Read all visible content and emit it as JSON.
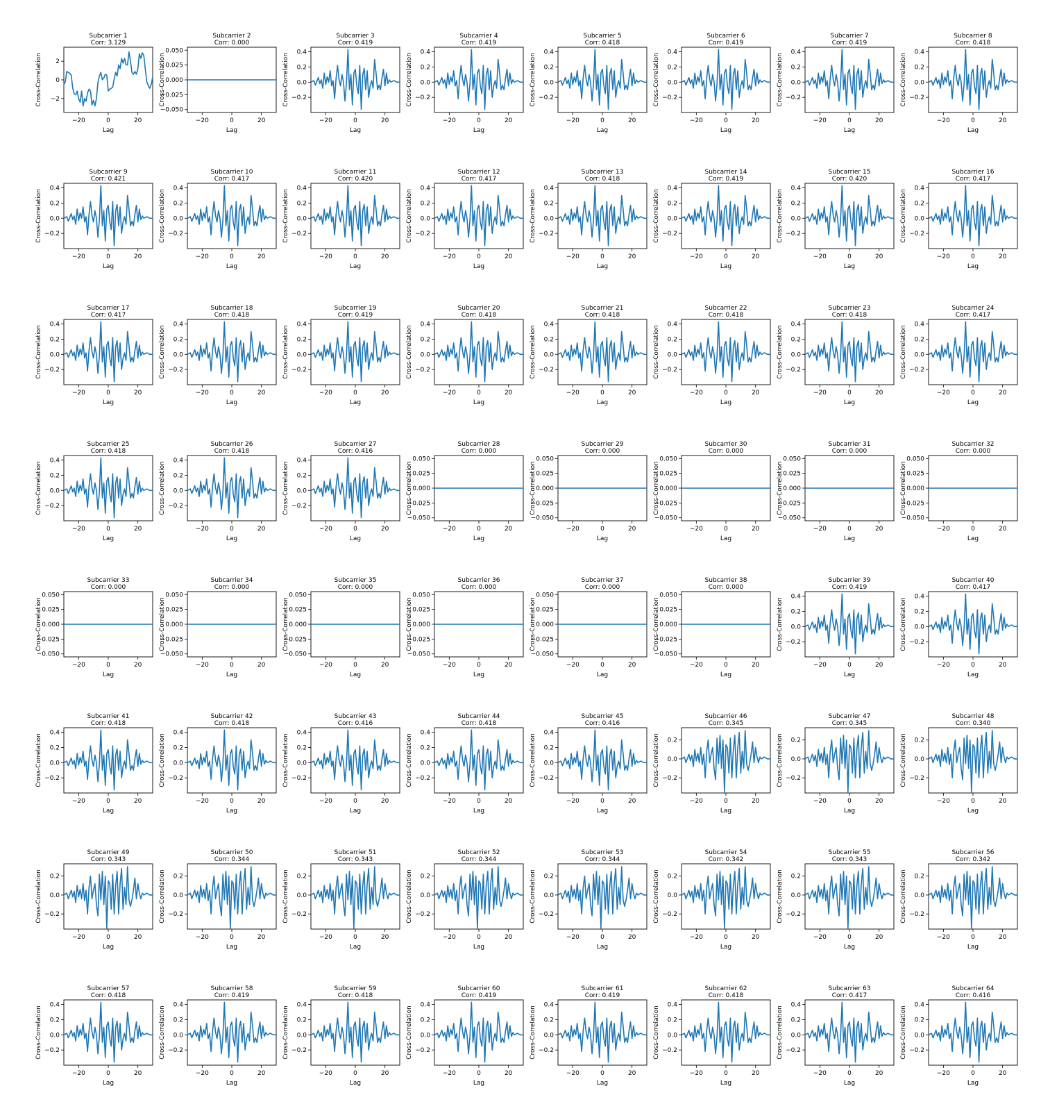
{
  "colors": {
    "line": "#1f77b4"
  },
  "chart_data": {
    "type": "line",
    "layout": "8x8 grid of small multiples",
    "xlabel": "Lag",
    "ylabel": "Cross-Correlation",
    "x_range": [
      -30,
      30
    ],
    "x_ticks": [
      -20,
      0,
      20
    ],
    "title_prefix": "Subcarrier",
    "corr_prefix": "Corr:",
    "ranges": {
      "typical": {
        "ylim": [
          -0.4,
          0.46
        ],
        "yticks": [
          "-0.2",
          "0.0",
          "0.2",
          "0.4"
        ],
        "yvals": [
          -0.2,
          0.0,
          0.2,
          0.4
        ]
      },
      "reduced": {
        "ylim": [
          -0.36,
          0.33
        ],
        "yticks": [
          "-0.2",
          "0.0",
          "0.2"
        ],
        "yvals": [
          -0.2,
          0.0,
          0.2
        ]
      },
      "flat": {
        "ylim": [
          -0.055,
          0.055
        ],
        "yticks": [
          "-0.050",
          "-0.025",
          "0.000",
          "0.025",
          "0.050"
        ],
        "yvals": [
          -0.05,
          -0.025,
          0.0,
          0.025,
          0.05
        ]
      },
      "first": {
        "ylim": [
          -3.5,
          3.5
        ],
        "yticks": [
          "-2",
          "0",
          "2"
        ],
        "yvals": [
          -2,
          0,
          2
        ]
      }
    },
    "shapes": {
      "typical": [
        [
          -30,
          0.0
        ],
        [
          -28,
          0.02
        ],
        [
          -27,
          -0.04
        ],
        [
          -25,
          0.06
        ],
        [
          -24,
          -0.02
        ],
        [
          -23,
          0.03
        ],
        [
          -22,
          -0.08
        ],
        [
          -21,
          0.12
        ],
        [
          -20,
          -0.03
        ],
        [
          -19,
          0.07
        ],
        [
          -18,
          0.0
        ],
        [
          -17,
          0.15
        ],
        [
          -16,
          -0.05
        ],
        [
          -15,
          0.02
        ],
        [
          -14,
          -0.22
        ],
        [
          -13,
          0.05
        ],
        [
          -12,
          0.22
        ],
        [
          -11,
          0.04
        ],
        [
          -10,
          -0.05
        ],
        [
          -9,
          0.1
        ],
        [
          -8,
          0.0
        ],
        [
          -7,
          -0.25
        ],
        [
          -6,
          -0.02
        ],
        [
          -5,
          0.43
        ],
        [
          -4,
          -0.1
        ],
        [
          -3,
          0.1
        ],
        [
          -2,
          -0.3
        ],
        [
          -1,
          0.12
        ],
        [
          0,
          0.17
        ],
        [
          1,
          -0.05
        ],
        [
          2,
          -0.15
        ],
        [
          3,
          0.22
        ],
        [
          4,
          -0.36
        ],
        [
          5,
          0.1
        ],
        [
          6,
          0.18
        ],
        [
          7,
          -0.1
        ],
        [
          8,
          0.15
        ],
        [
          9,
          -0.2
        ],
        [
          10,
          -0.05
        ],
        [
          11,
          0.02
        ],
        [
          12,
          -0.08
        ],
        [
          13,
          0.3
        ],
        [
          14,
          0.12
        ],
        [
          15,
          -0.1
        ],
        [
          16,
          -0.04
        ],
        [
          17,
          -0.1
        ],
        [
          18,
          0.05
        ],
        [
          19,
          0.17
        ],
        [
          20,
          -0.05
        ],
        [
          21,
          0.12
        ],
        [
          22,
          -0.02
        ],
        [
          23,
          0.03
        ],
        [
          24,
          0.0
        ],
        [
          26,
          0.02
        ],
        [
          28,
          0.0
        ],
        [
          30,
          0.0
        ]
      ],
      "reduced": [
        [
          -30,
          0.0
        ],
        [
          -28,
          0.02
        ],
        [
          -27,
          -0.04
        ],
        [
          -25,
          0.05
        ],
        [
          -24,
          -0.02
        ],
        [
          -23,
          0.04
        ],
        [
          -22,
          -0.08
        ],
        [
          -21,
          0.1
        ],
        [
          -20,
          -0.02
        ],
        [
          -19,
          0.06
        ],
        [
          -18,
          -0.04
        ],
        [
          -17,
          0.12
        ],
        [
          -16,
          -0.06
        ],
        [
          -15,
          0.05
        ],
        [
          -14,
          -0.2
        ],
        [
          -13,
          0.08
        ],
        [
          -12,
          0.2
        ],
        [
          -11,
          -0.04
        ],
        [
          -10,
          0.05
        ],
        [
          -9,
          0.12
        ],
        [
          -8,
          -0.1
        ],
        [
          -7,
          -0.22
        ],
        [
          -6,
          0.22
        ],
        [
          -5,
          -0.05
        ],
        [
          -4,
          0.25
        ],
        [
          -3,
          -0.1
        ],
        [
          -2,
          0.2
        ],
        [
          -1,
          -0.35
        ],
        [
          0,
          0.15
        ],
        [
          1,
          0.12
        ],
        [
          2,
          -0.15
        ],
        [
          3,
          0.22
        ],
        [
          4,
          -0.2
        ],
        [
          5,
          0.1
        ],
        [
          6,
          0.25
        ],
        [
          7,
          -0.2
        ],
        [
          8,
          0.12
        ],
        [
          9,
          0.28
        ],
        [
          10,
          -0.15
        ],
        [
          11,
          0.08
        ],
        [
          12,
          -0.1
        ],
        [
          13,
          0.3
        ],
        [
          14,
          -0.05
        ],
        [
          15,
          -0.12
        ],
        [
          16,
          -0.05
        ],
        [
          17,
          0.05
        ],
        [
          18,
          0.18
        ],
        [
          19,
          -0.04
        ],
        [
          20,
          0.12
        ],
        [
          21,
          0.02
        ],
        [
          22,
          -0.04
        ],
        [
          23,
          0.02
        ],
        [
          24,
          0.0
        ],
        [
          26,
          0.02
        ],
        [
          28,
          0.0
        ],
        [
          30,
          0.0
        ]
      ],
      "first": [
        [
          -30,
          -0.5
        ],
        [
          -29,
          -0.2
        ],
        [
          -28,
          0.9
        ],
        [
          -27,
          0.8
        ],
        [
          -26,
          0.7
        ],
        [
          -25,
          0.5
        ],
        [
          -24,
          -0.9
        ],
        [
          -23,
          -1.5
        ],
        [
          -22,
          -1.6
        ],
        [
          -21,
          -1.2
        ],
        [
          -20,
          -2.0
        ],
        [
          -19,
          -2.4
        ],
        [
          -18,
          -1.2
        ],
        [
          -17,
          -2.8
        ],
        [
          -16,
          -2.0
        ],
        [
          -15,
          -2.3
        ],
        [
          -14,
          -1.4
        ],
        [
          -13,
          -1.0
        ],
        [
          -12,
          -1.2
        ],
        [
          -11,
          -2.7
        ],
        [
          -10,
          -2.2
        ],
        [
          -9,
          -2.8
        ],
        [
          -8,
          -2.0
        ],
        [
          -7,
          -0.3
        ],
        [
          -6,
          0.4
        ],
        [
          -5,
          0.8
        ],
        [
          -4,
          0.0
        ],
        [
          -3,
          0.2
        ],
        [
          -2,
          0.6
        ],
        [
          -1,
          0.5
        ],
        [
          0,
          -1.2
        ],
        [
          1,
          -1.0
        ],
        [
          2,
          -0.9
        ],
        [
          3,
          -0.8
        ],
        [
          4,
          0.1
        ],
        [
          5,
          0.8
        ],
        [
          6,
          0.4
        ],
        [
          7,
          1.6
        ],
        [
          8,
          1.2
        ],
        [
          9,
          2.3
        ],
        [
          10,
          1.8
        ],
        [
          11,
          2.3
        ],
        [
          12,
          1.6
        ],
        [
          13,
          1.6
        ],
        [
          14,
          3.0
        ],
        [
          15,
          2.0
        ],
        [
          16,
          0.8
        ],
        [
          17,
          0.6
        ],
        [
          18,
          0.9
        ],
        [
          19,
          0.6
        ],
        [
          20,
          1.2
        ],
        [
          21,
          2.8
        ],
        [
          22,
          2.3
        ],
        [
          23,
          2.9
        ],
        [
          24,
          2.6
        ],
        [
          25,
          1.2
        ],
        [
          26,
          -0.2
        ],
        [
          27,
          -0.6
        ],
        [
          28,
          -0.9
        ],
        [
          29,
          -0.5
        ],
        [
          30,
          0.3
        ]
      ],
      "flat": [
        [
          -30,
          0.0
        ],
        [
          30,
          0.0
        ]
      ]
    },
    "subplots": [
      {
        "title": "Subcarrier 1",
        "corr": "Corr: 3.129",
        "shape": "first"
      },
      {
        "title": "Subcarrier 2",
        "corr": "Corr: 0.000",
        "shape": "flat"
      },
      {
        "title": "Subcarrier 3",
        "corr": "Corr: 0.419",
        "shape": "typical"
      },
      {
        "title": "Subcarrier 4",
        "corr": "Corr: 0.419",
        "shape": "typical"
      },
      {
        "title": "Subcarrier 5",
        "corr": "Corr: 0.418",
        "shape": "typical"
      },
      {
        "title": "Subcarrier 6",
        "corr": "Corr: 0.419",
        "shape": "typical"
      },
      {
        "title": "Subcarrier 7",
        "corr": "Corr: 0.419",
        "shape": "typical"
      },
      {
        "title": "Subcarrier 8",
        "corr": "Corr: 0.418",
        "shape": "typical"
      },
      {
        "title": "Subcarrier 9",
        "corr": "Corr: 0.421",
        "shape": "typical"
      },
      {
        "title": "Subcarrier 10",
        "corr": "Corr: 0.417",
        "shape": "typical"
      },
      {
        "title": "Subcarrier 11",
        "corr": "Corr: 0.420",
        "shape": "typical"
      },
      {
        "title": "Subcarrier 12",
        "corr": "Corr: 0.417",
        "shape": "typical"
      },
      {
        "title": "Subcarrier 13",
        "corr": "Corr: 0.418",
        "shape": "typical"
      },
      {
        "title": "Subcarrier 14",
        "corr": "Corr: 0.419",
        "shape": "typical"
      },
      {
        "title": "Subcarrier 15",
        "corr": "Corr: 0.420",
        "shape": "typical"
      },
      {
        "title": "Subcarrier 16",
        "corr": "Corr: 0.417",
        "shape": "typical"
      },
      {
        "title": "Subcarrier 17",
        "corr": "Corr: 0.417",
        "shape": "typical"
      },
      {
        "title": "Subcarrier 18",
        "corr": "Corr: 0.418",
        "shape": "typical"
      },
      {
        "title": "Subcarrier 19",
        "corr": "Corr: 0.419",
        "shape": "typical"
      },
      {
        "title": "Subcarrier 20",
        "corr": "Corr: 0.418",
        "shape": "typical"
      },
      {
        "title": "Subcarrier 21",
        "corr": "Corr: 0.418",
        "shape": "typical"
      },
      {
        "title": "Subcarrier 22",
        "corr": "Corr: 0.418",
        "shape": "typical"
      },
      {
        "title": "Subcarrier 23",
        "corr": "Corr: 0.418",
        "shape": "typical"
      },
      {
        "title": "Subcarrier 24",
        "corr": "Corr: 0.417",
        "shape": "typical"
      },
      {
        "title": "Subcarrier 25",
        "corr": "Corr: 0.418",
        "shape": "typical"
      },
      {
        "title": "Subcarrier 26",
        "corr": "Corr: 0.418",
        "shape": "typical"
      },
      {
        "title": "Subcarrier 27",
        "corr": "Corr: 0.416",
        "shape": "typical"
      },
      {
        "title": "Subcarrier 28",
        "corr": "Corr: 0.000",
        "shape": "flat"
      },
      {
        "title": "Subcarrier 29",
        "corr": "Corr: 0.000",
        "shape": "flat"
      },
      {
        "title": "Subcarrier 30",
        "corr": "Corr: 0.000",
        "shape": "flat"
      },
      {
        "title": "Subcarrier 31",
        "corr": "Corr: 0.000",
        "shape": "flat"
      },
      {
        "title": "Subcarrier 32",
        "corr": "Corr: 0.000",
        "shape": "flat"
      },
      {
        "title": "Subcarrier 33",
        "corr": "Corr: 0.000",
        "shape": "flat"
      },
      {
        "title": "Subcarrier 34",
        "corr": "Corr: 0.000",
        "shape": "flat"
      },
      {
        "title": "Subcarrier 35",
        "corr": "Corr: 0.000",
        "shape": "flat"
      },
      {
        "title": "Subcarrier 36",
        "corr": "Corr: 0.000",
        "shape": "flat"
      },
      {
        "title": "Subcarrier 37",
        "corr": "Corr: 0.000",
        "shape": "flat"
      },
      {
        "title": "Subcarrier 38",
        "corr": "Corr: 0.000",
        "shape": "flat"
      },
      {
        "title": "Subcarrier 39",
        "corr": "Corr: 0.419",
        "shape": "typical"
      },
      {
        "title": "Subcarrier 40",
        "corr": "Corr: 0.417",
        "shape": "typical"
      },
      {
        "title": "Subcarrier 41",
        "corr": "Corr: 0.418",
        "shape": "typical"
      },
      {
        "title": "Subcarrier 42",
        "corr": "Corr: 0.418",
        "shape": "typical"
      },
      {
        "title": "Subcarrier 43",
        "corr": "Corr: 0.416",
        "shape": "typical"
      },
      {
        "title": "Subcarrier 44",
        "corr": "Corr: 0.418",
        "shape": "typical"
      },
      {
        "title": "Subcarrier 45",
        "corr": "Corr: 0.416",
        "shape": "typical"
      },
      {
        "title": "Subcarrier 46",
        "corr": "Corr: 0.345",
        "shape": "reduced"
      },
      {
        "title": "Subcarrier 47",
        "corr": "Corr: 0.345",
        "shape": "reduced"
      },
      {
        "title": "Subcarrier 48",
        "corr": "Corr: 0.340",
        "shape": "reduced"
      },
      {
        "title": "Subcarrier 49",
        "corr": "Corr: 0.343",
        "shape": "reduced"
      },
      {
        "title": "Subcarrier 50",
        "corr": "Corr: 0.344",
        "shape": "reduced"
      },
      {
        "title": "Subcarrier 51",
        "corr": "Corr: 0.343",
        "shape": "reduced"
      },
      {
        "title": "Subcarrier 52",
        "corr": "Corr: 0.344",
        "shape": "reduced"
      },
      {
        "title": "Subcarrier 53",
        "corr": "Corr: 0.344",
        "shape": "reduced"
      },
      {
        "title": "Subcarrier 54",
        "corr": "Corr: 0.342",
        "shape": "reduced"
      },
      {
        "title": "Subcarrier 55",
        "corr": "Corr: 0.343",
        "shape": "reduced"
      },
      {
        "title": "Subcarrier 56",
        "corr": "Corr: 0.342",
        "shape": "reduced"
      },
      {
        "title": "Subcarrier 57",
        "corr": "Corr: 0.418",
        "shape": "typical"
      },
      {
        "title": "Subcarrier 58",
        "corr": "Corr: 0.419",
        "shape": "typical"
      },
      {
        "title": "Subcarrier 59",
        "corr": "Corr: 0.418",
        "shape": "typical"
      },
      {
        "title": "Subcarrier 60",
        "corr": "Corr: 0.419",
        "shape": "typical"
      },
      {
        "title": "Subcarrier 61",
        "corr": "Corr: 0.419",
        "shape": "typical"
      },
      {
        "title": "Subcarrier 62",
        "corr": "Corr: 0.418",
        "shape": "typical"
      },
      {
        "title": "Subcarrier 63",
        "corr": "Corr: 0.417",
        "shape": "typical"
      },
      {
        "title": "Subcarrier 64",
        "corr": "Corr: 0.416",
        "shape": "typical"
      }
    ]
  }
}
